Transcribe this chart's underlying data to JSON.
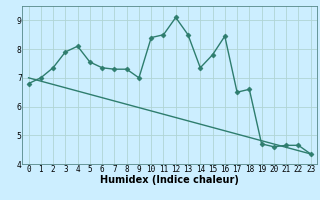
{
  "title": "",
  "xlabel": "Humidex (Indice chaleur)",
  "ylabel": "",
  "background_color": "#cceeff",
  "grid_color": "#b0d4d4",
  "line_color": "#2e7d6e",
  "xlim": [
    -0.5,
    23.5
  ],
  "ylim": [
    4,
    9.5
  ],
  "yticks": [
    4,
    5,
    6,
    7,
    8,
    9
  ],
  "xticks": [
    0,
    1,
    2,
    3,
    4,
    5,
    6,
    7,
    8,
    9,
    10,
    11,
    12,
    13,
    14,
    15,
    16,
    17,
    18,
    19,
    20,
    21,
    22,
    23
  ],
  "curve1_x": [
    0,
    1,
    2,
    3,
    4,
    5,
    6,
    7,
    8,
    9,
    10,
    11,
    12,
    13,
    14,
    15,
    16,
    17,
    18,
    19,
    20,
    21,
    22,
    23
  ],
  "curve1_y": [
    6.8,
    7.0,
    7.35,
    7.9,
    8.1,
    7.55,
    7.35,
    7.3,
    7.3,
    7.0,
    8.4,
    8.5,
    9.1,
    8.5,
    7.35,
    7.8,
    8.45,
    6.5,
    6.6,
    4.7,
    4.6,
    4.65,
    4.65,
    4.35
  ],
  "curve2_x": [
    0,
    23
  ],
  "curve2_y": [
    7.0,
    4.35
  ],
  "marker": "D",
  "marker_size": 2.5,
  "line_width": 1.0,
  "font_size_label": 7,
  "font_size_tick": 5.5
}
